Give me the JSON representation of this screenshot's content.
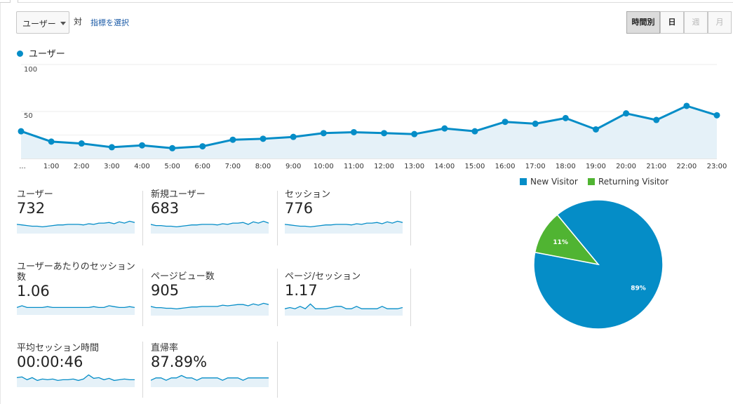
{
  "toolbar": {
    "metric_select": "ユーザー",
    "vs_label": "対",
    "pick_metric_link": "指標を選択",
    "periods": [
      {
        "label": "時間別",
        "state": "active"
      },
      {
        "label": "日",
        "state": "normal"
      },
      {
        "label": "週",
        "state": "disabled"
      },
      {
        "label": "月",
        "state": "disabled"
      }
    ]
  },
  "colors": {
    "accent": "#058dc7",
    "area": "#e5f1f8",
    "returning": "#50b432"
  },
  "chart_data": {
    "type": "line",
    "series": [
      {
        "name": "ユーザー",
        "values": [
          29,
          18,
          16,
          12,
          14,
          11,
          13,
          20,
          21,
          23,
          27,
          28,
          27,
          26,
          32,
          29,
          39,
          37,
          43,
          31,
          48,
          41,
          56,
          46
        ]
      }
    ],
    "categories": [
      "...",
      "1:00",
      "2:00",
      "3:00",
      "4:00",
      "5:00",
      "6:00",
      "7:00",
      "8:00",
      "9:00",
      "10:00",
      "11:00",
      "12:00",
      "13:00",
      "14:00",
      "15:00",
      "16:00",
      "17:00",
      "18:00",
      "19:00",
      "20:00",
      "21:00",
      "22:00",
      "23:00"
    ],
    "y_ticks": [
      "100",
      "50"
    ],
    "ylim": [
      0,
      100
    ],
    "grid": true
  },
  "scorecards": [
    {
      "label": "ユーザー",
      "value": "732",
      "spark": [
        7,
        6,
        5,
        4,
        4,
        3,
        4,
        5,
        6,
        6,
        7,
        7,
        7,
        6,
        8,
        7,
        9,
        9,
        10,
        8,
        11,
        9,
        12,
        10
      ]
    },
    {
      "label": "新規ユーザー",
      "value": "683",
      "spark": [
        7,
        5,
        5,
        4,
        4,
        3,
        4,
        5,
        6,
        6,
        7,
        7,
        7,
        6,
        8,
        7,
        9,
        9,
        10,
        7,
        11,
        9,
        12,
        9
      ]
    },
    {
      "label": "セッション",
      "value": "776",
      "spark": [
        7,
        6,
        5,
        4,
        4,
        3,
        4,
        5,
        6,
        6,
        7,
        7,
        7,
        6,
        8,
        7,
        9,
        9,
        10,
        8,
        11,
        9,
        12,
        10
      ]
    },
    {
      "label": "ユーザーあたりのセッション数",
      "value": "1.06",
      "spark": [
        5,
        5.2,
        5,
        5,
        5,
        5,
        5.1,
        5,
        5,
        5,
        5,
        5,
        5,
        5,
        5,
        5.1,
        5,
        5,
        5.2,
        5.1,
        5,
        5,
        5.1,
        5
      ]
    },
    {
      "label": "ページビュー数",
      "value": "905",
      "spark": [
        6,
        4,
        4,
        3,
        3,
        2,
        3,
        4,
        5,
        5,
        6,
        6,
        6,
        6,
        8,
        7,
        8,
        9,
        9,
        7,
        10,
        8,
        11,
        9
      ]
    },
    {
      "label": "ページ/セッション",
      "value": "1.17",
      "spark": [
        6,
        6.5,
        6,
        7,
        6,
        8,
        6,
        6,
        6,
        6.5,
        7,
        7,
        6,
        6,
        7,
        6,
        6,
        6,
        6,
        7,
        6,
        6,
        6,
        6.5
      ]
    },
    {
      "label": "平均セッション時間",
      "value": "00:00:46",
      "spark": [
        8,
        9,
        5,
        8,
        4,
        6,
        5,
        6,
        4,
        5,
        5,
        6,
        4,
        6,
        12,
        7,
        8,
        5,
        7,
        4,
        5,
        6,
        5,
        5
      ]
    },
    {
      "label": "直帰率",
      "value": "87.89%",
      "spark": [
        5,
        6,
        6,
        5,
        6,
        6,
        7,
        6,
        6,
        5,
        6,
        6,
        6,
        6,
        5,
        6,
        6,
        6,
        5,
        6,
        6,
        6,
        6,
        6
      ]
    }
  ],
  "pie": {
    "legend": [
      {
        "label": "New Visitor",
        "color": "#058dc7"
      },
      {
        "label": "Returning Visitor",
        "color": "#50b432"
      }
    ],
    "slices": [
      {
        "label": "89%",
        "value": 89,
        "color": "#058dc7"
      },
      {
        "label": "11%",
        "value": 11,
        "color": "#50b432"
      }
    ]
  }
}
